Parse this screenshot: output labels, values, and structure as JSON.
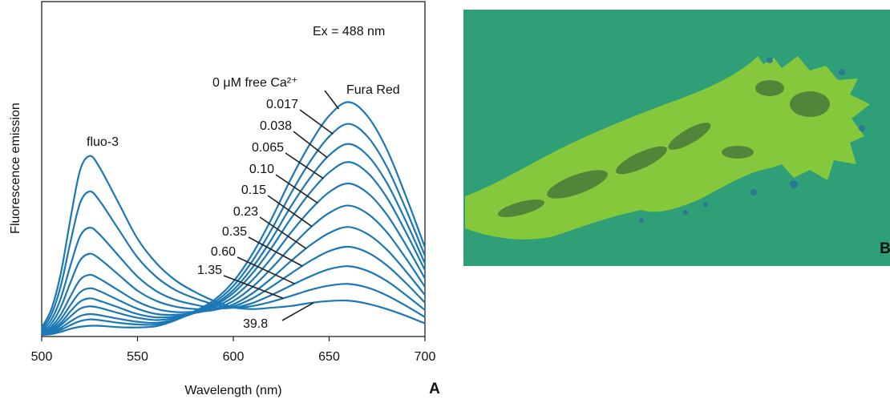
{
  "chart_data": {
    "type": "line",
    "annotations": [
      "Ex = 488 nm",
      "fluo-3",
      "Fura Red"
    ],
    "xlabel": "Wavelength (nm)",
    "ylabel": "Fluorescence emission",
    "x": [
      500,
      505,
      510,
      515,
      520,
      525,
      530,
      540,
      550,
      560,
      570,
      580,
      590,
      600,
      610,
      620,
      630,
      640,
      650,
      660,
      670,
      680,
      690,
      700
    ],
    "xlim": [
      500,
      700
    ],
    "xticks": [
      500,
      550,
      600,
      650,
      700
    ],
    "ylim": [
      0,
      100
    ],
    "series": [
      {
        "name": "0 μM free Ca²⁺",
        "color": "#1b78b4",
        "values": [
          0.5,
          0.7,
          1.4,
          2.3,
          2.9,
          3.2,
          3.2,
          2.8,
          2.7,
          3.1,
          4.9,
          7.6,
          10.9,
          16.4,
          24.7,
          35.2,
          47.0,
          57.5,
          65.9,
          70.0,
          65.8,
          56.0,
          42.0,
          26.6
        ]
      },
      {
        "name": "0.017",
        "color": "#1b78b4",
        "values": [
          0.5,
          1.0,
          2.0,
          3.4,
          4.6,
          5.1,
          4.9,
          4.1,
          3.6,
          3.6,
          5.1,
          7.3,
          10.2,
          15.1,
          22.6,
          32.0,
          42.7,
          52.2,
          59.7,
          63.5,
          59.7,
          50.8,
          38.1,
          24.1
        ]
      },
      {
        "name": "0.038",
        "color": "#1b78b4",
        "values": [
          0.6,
          1.2,
          2.6,
          4.5,
          6.1,
          6.7,
          6.4,
          5.3,
          4.4,
          4.1,
          5.2,
          7.1,
          9.6,
          13.9,
          20.6,
          29.1,
          38.8,
          47.3,
          54.1,
          57.5,
          54.1,
          46.0,
          34.5,
          21.8
        ]
      },
      {
        "name": "0.065",
        "color": "#1b78b4",
        "values": [
          0.7,
          1.5,
          3.4,
          6.0,
          8.3,
          9.0,
          8.6,
          7.0,
          5.6,
          4.9,
          5.6,
          7.1,
          9.2,
          13.0,
          18.9,
          26.5,
          35.2,
          42.9,
          49.0,
          52.1,
          48.9,
          41.6,
          31.2,
          19.8
        ]
      },
      {
        "name": "0.10",
        "color": "#1b78b4",
        "values": [
          0.8,
          1.9,
          4.1,
          7.5,
          10.4,
          11.4,
          10.7,
          8.7,
          6.7,
          5.7,
          6.0,
          7.0,
          8.7,
          11.8,
          16.9,
          23.5,
          31.0,
          37.7,
          43.1,
          45.7,
          42.9,
          36.5,
          27.4,
          17.3
        ]
      },
      {
        "name": "0.15",
        "color": "#1b78b4",
        "values": [
          0.9,
          2.3,
          5.2,
          9.4,
          13.2,
          14.4,
          13.6,
          10.9,
          8.3,
          6.7,
          6.5,
          7.1,
          8.2,
          10.6,
          14.8,
          20.4,
          26.7,
          32.4,
          36.9,
          39.1,
          36.7,
          31.2,
          23.4,
          14.8
        ]
      },
      {
        "name": "0.23",
        "color": "#1b78b4",
        "values": [
          1.1,
          2.9,
          6.6,
          12.0,
          16.9,
          18.4,
          17.3,
          13.8,
          10.4,
          8.2,
          7.3,
          7.4,
          7.9,
          9.6,
          12.9,
          17.4,
          22.5,
          27.2,
          30.9,
          32.7,
          30.6,
          26.0,
          19.5,
          12.4
        ]
      },
      {
        "name": "0.35",
        "color": "#1b78b4",
        "values": [
          1.4,
          3.8,
          8.8,
          16.1,
          22.7,
          24.7,
          23.3,
          18.5,
          13.7,
          10.6,
          8.9,
          8.2,
          8.1,
          9.0,
          11.4,
          14.9,
          18.8,
          22.5,
          25.5,
          26.8,
          25.1,
          21.3,
          16.0,
          10.1
        ]
      },
      {
        "name": "0.60",
        "color": "#1b78b4",
        "values": [
          1.7,
          5.0,
          11.5,
          21.2,
          29.9,
          32.5,
          30.6,
          24.2,
          17.9,
          13.5,
          10.9,
          9.5,
          8.5,
          8.6,
          10.0,
          12.4,
          15.2,
          17.9,
          20.1,
          21.0,
          19.6,
          16.6,
          12.4,
          7.9
        ]
      },
      {
        "name": "1.35",
        "color": "#1b78b4",
        "values": [
          2.2,
          6.5,
          15.2,
          28.2,
          39.8,
          43.3,
          40.7,
          32.1,
          23.6,
          17.7,
          13.8,
          11.4,
          9.6,
          8.6,
          9.1,
          10.4,
          12.1,
          13.9,
          15.2,
          15.7,
          14.6,
          12.3,
          9.2,
          5.8
        ]
      },
      {
        "name": "39.8",
        "color": "#1b78b4",
        "values": [
          2.7,
          8.1,
          18.9,
          35.1,
          49.6,
          53.9,
          50.7,
          40.0,
          29.2,
          21.8,
          16.7,
          13.3,
          10.6,
          8.7,
          8.2,
          8.6,
          9.1,
          10.0,
          10.6,
          10.7,
          9.8,
          8.2,
          6.2,
          3.9
        ]
      }
    ]
  },
  "panel_labels": [
    "A",
    "B"
  ]
}
